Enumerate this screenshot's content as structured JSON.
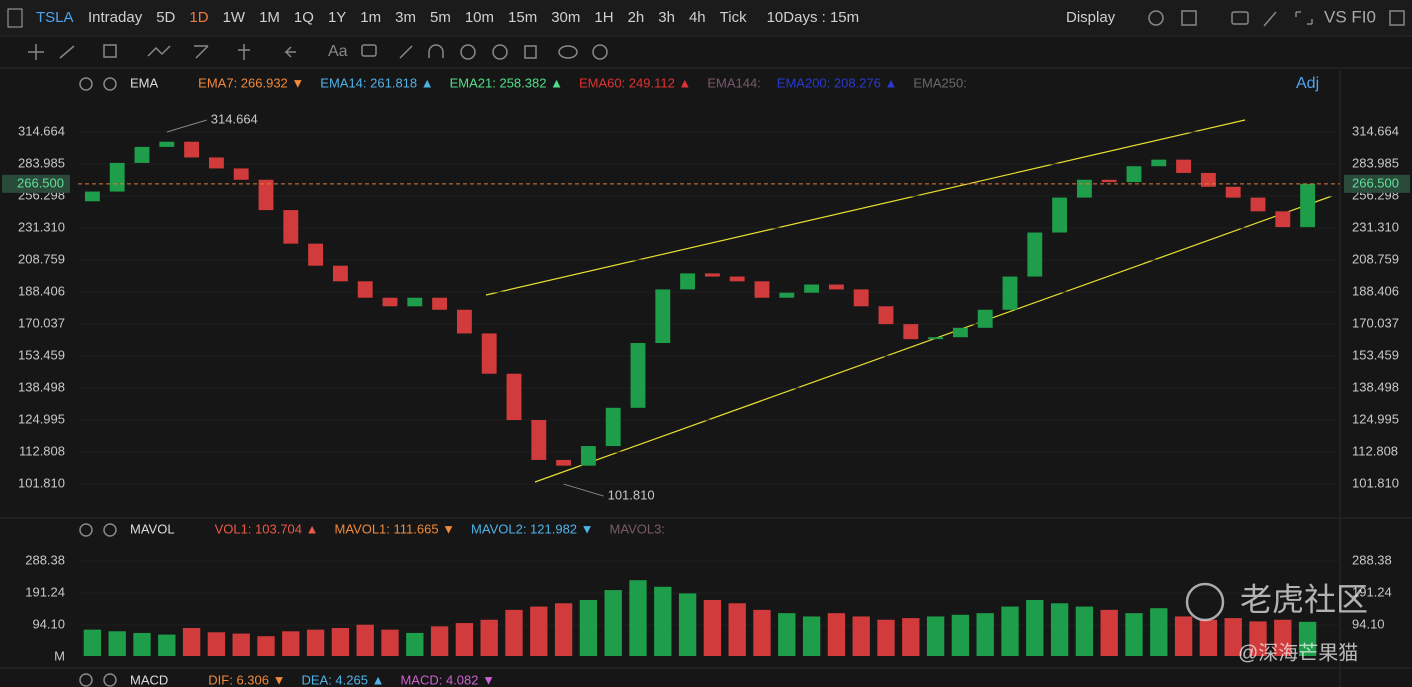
{
  "toolbar": {
    "symbol": "TSLA",
    "periods": [
      "Intraday",
      "5D",
      "1D",
      "1W",
      "1M",
      "1Q",
      "1Y",
      "1m",
      "3m",
      "5m",
      "10m",
      "15m",
      "30m",
      "1H",
      "2h",
      "3h",
      "4h",
      "Tick"
    ],
    "active_period": 2,
    "range": "10Days : 15m",
    "display": "Display",
    "compare": "VS FI0"
  },
  "price_legend": {
    "name": "EMA",
    "adj": "Adj",
    "items": [
      {
        "text": "EMA7: 266.932 ▼",
        "color": "#f08a3c"
      },
      {
        "text": "EMA14: 261.818 ▲",
        "color": "#4fb3e8"
      },
      {
        "text": "EMA21: 258.382 ▲",
        "color": "#4fe08a"
      },
      {
        "text": "EMA60: 249.112 ▲",
        "color": "#e03232"
      },
      {
        "text": "EMA144:",
        "color": "#7a5a6a"
      },
      {
        "text": "EMA200: 208.276 ▲",
        "color": "#2a3ad0"
      },
      {
        "text": "EMA250:",
        "color": "#6a6a6a"
      }
    ]
  },
  "volume_legend": {
    "name": "MAVOL",
    "items": [
      {
        "text": "VOL1: 103.704 ▲",
        "color": "#e85a4a"
      },
      {
        "text": "MAVOL1: 111.665 ▼",
        "color": "#f08a3c"
      },
      {
        "text": "MAVOL2: 121.982 ▼",
        "color": "#4fb3e8"
      },
      {
        "text": "MAVOL3:",
        "color": "#7a5a6a"
      }
    ]
  },
  "macd_legend": {
    "name": "MACD",
    "items": [
      {
        "text": "DIF: 6.306 ▼",
        "color": "#f08a3c"
      },
      {
        "text": "DEA: 4.265 ▲",
        "color": "#4fb3e8"
      },
      {
        "text": "MACD: 4.082 ▼",
        "color": "#d060d0"
      }
    ]
  },
  "chart_data": [
    {
      "type": "candlestick",
      "log_scale": true,
      "ylim": [
        92.2,
        354.3
      ],
      "yticks": [
        314.664,
        283.985,
        256.298,
        {
          "value": 231.31,
          "label": "231.310"
        },
        208.759,
        188.406,
        170.037,
        153.459,
        138.498,
        124.995,
        112.808,
        {
          "value": 101.81,
          "label": "101.810"
        }
      ],
      "current": {
        "value": 266.5,
        "label": "266.500"
      },
      "annotations": [
        {
          "value": 314.664,
          "label": "314.664"
        },
        {
          "value": 101.81,
          "label": "101.810"
        }
      ],
      "colors": {
        "up": "#1e9e4a",
        "down": "#d23b3b"
      },
      "open": [
        252,
        260,
        285,
        300,
        305,
        290,
        280,
        270,
        245,
        220,
        205,
        195,
        185,
        180,
        185,
        178,
        165,
        145,
        125,
        110,
        108,
        115,
        130,
        160,
        190,
        200,
        198,
        195,
        185,
        188,
        193,
        190,
        180,
        170,
        162,
        163,
        168,
        178,
        198,
        228,
        255,
        270,
        268,
        282,
        288,
        276,
        264,
        255,
        244,
        232
      ],
      "close": [
        260,
        285,
        300,
        305,
        290,
        280,
        270,
        245,
        220,
        205,
        195,
        185,
        180,
        185,
        178,
        165,
        145,
        125,
        110,
        108,
        115,
        130,
        160,
        190,
        200,
        198,
        195,
        185,
        188,
        193,
        190,
        180,
        170,
        162,
        163,
        168,
        178,
        198,
        228,
        255,
        270,
        268,
        282,
        288,
        276,
        264,
        255,
        244,
        232,
        266.5
      ]
    },
    {
      "type": "bar",
      "ylim": [
        0,
        352
      ],
      "yticks": [
        288.38,
        191.24,
        {
          "value": 94.1,
          "label": "94.10"
        }
      ],
      "unit": "M",
      "values": [
        80,
        75,
        70,
        65,
        85,
        72,
        68,
        60,
        75,
        80,
        85,
        95,
        80,
        70,
        90,
        100,
        110,
        140,
        150,
        160,
        170,
        200,
        230,
        210,
        190,
        170,
        160,
        140,
        130,
        120,
        130,
        120,
        110,
        115,
        120,
        125,
        130,
        150,
        170,
        160,
        150,
        140,
        130,
        145,
        120,
        110,
        115,
        105,
        110,
        103.704
      ]
    }
  ],
  "watermark": {
    "brand": "老虎社区",
    "author": "@深海芒果猫"
  }
}
